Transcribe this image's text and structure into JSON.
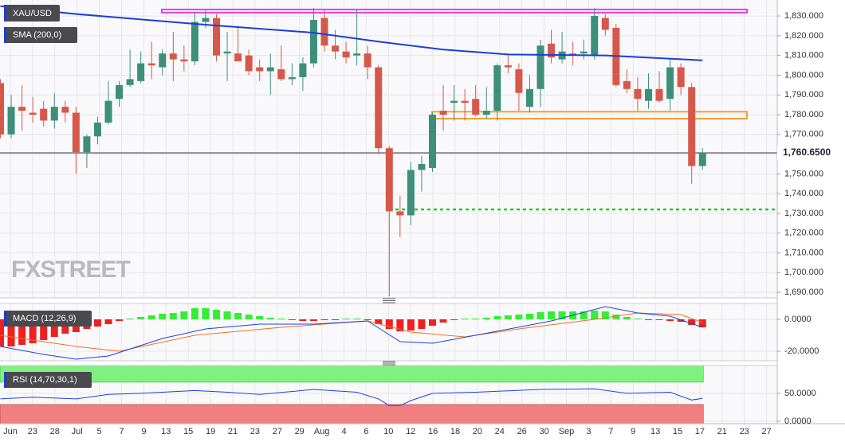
{
  "chart_data": {
    "type": "candlestick",
    "title": "XAU/USD",
    "watermark": "FXSTREET",
    "grid": true,
    "x_labels": [
      "Jun",
      "23",
      "28",
      "Jul",
      "5",
      "7",
      "9",
      "13",
      "15",
      "19",
      "21",
      "23",
      "27",
      "29",
      "Aug",
      "4",
      "6",
      "10",
      "12",
      "16",
      "18",
      "20",
      "24",
      "26",
      "30",
      "Sep",
      "3",
      "7",
      "9",
      "13",
      "15",
      "17",
      "21",
      "23",
      "27"
    ],
    "open": [
      1796,
      1770,
      1784,
      1781,
      1783,
      1777,
      1784,
      1781,
      1761,
      1769,
      1776,
      1788,
      1795,
      1797,
      1806,
      1804,
      1811,
      1808,
      1807,
      1827,
      1829,
      1811,
      1811,
      1810,
      1804,
      1802,
      1803,
      1798,
      1799,
      1806,
      1829,
      1815,
      1812,
      1810,
      1811,
      1804,
      1763,
      1731,
      1729,
      1752,
      1753,
      1782,
      1786,
      1787,
      1788,
      1780,
      1782,
      1805,
      1803,
      1784,
      1793,
      1816,
      1808,
      1811,
      1811,
      1810,
      1829,
      1824,
      1797,
      1793,
      1787,
      1793,
      1788,
      1804,
      1794,
      1754
    ],
    "high": [
      1798,
      1790,
      1795,
      1789,
      1787,
      1791,
      1787,
      1784,
      1770,
      1779,
      1797,
      1797,
      1813,
      1812,
      1817,
      1813,
      1822,
      1815,
      1832,
      1833,
      1831,
      1822,
      1825,
      1813,
      1808,
      1811,
      1815,
      1806,
      1809,
      1834,
      1833,
      1823,
      1817,
      1833,
      1815,
      1805,
      1764,
      1739,
      1756,
      1759,
      1781,
      1795,
      1795,
      1793,
      1795,
      1794,
      1806,
      1810,
      1806,
      1800,
      1818,
      1823,
      1822,
      1817,
      1818,
      1834,
      1831,
      1826,
      1803,
      1799,
      1801,
      1802,
      1808,
      1806,
      1796,
      1763
    ],
    "low": [
      1768,
      1768,
      1772,
      1776,
      1774,
      1773,
      1776,
      1750,
      1753,
      1765,
      1775,
      1784,
      1794,
      1796,
      1798,
      1800,
      1797,
      1802,
      1805,
      1824,
      1807,
      1797,
      1808,
      1800,
      1797,
      1790,
      1797,
      1795,
      1792,
      1804,
      1812,
      1808,
      1806,
      1805,
      1798,
      1760,
      1688,
      1718,
      1724,
      1741,
      1751,
      1772,
      1777,
      1777,
      1779,
      1778,
      1777,
      1801,
      1782,
      1781,
      1784,
      1806,
      1806,
      1805,
      1808,
      1808,
      1820,
      1794,
      1791,
      1782,
      1783,
      1786,
      1782,
      1790,
      1745,
      1752
    ],
    "close": [
      1770,
      1784,
      1782,
      1780,
      1777,
      1784,
      1781,
      1761,
      1769,
      1776,
      1787,
      1795,
      1798,
      1806,
      1805,
      1811,
      1808,
      1807,
      1827,
      1829,
      1810,
      1812,
      1807,
      1802,
      1802,
      1804,
      1798,
      1799,
      1806,
      1828,
      1815,
      1812,
      1809,
      1811,
      1804,
      1763,
      1731,
      1729,
      1752,
      1755,
      1780,
      1780,
      1787,
      1786,
      1780,
      1782,
      1805,
      1804,
      1791,
      1793,
      1815,
      1809,
      1812,
      1810,
      1812,
      1830,
      1823,
      1795,
      1793,
      1788,
      1793,
      1787,
      1804,
      1794,
      1754,
      1760.65
    ],
    "up_color": "#3d8f7a",
    "down_color": "#d6584b",
    "ylim": [
      1687.2,
      1838.1
    ],
    "yticks": [
      {
        "value": 1690,
        "label": "1,690.000"
      },
      {
        "value": 1700,
        "label": "1,700.000"
      },
      {
        "value": 1710,
        "label": "1,710.000"
      },
      {
        "value": 1720,
        "label": "1,720.000"
      },
      {
        "value": 1730,
        "label": "1,730.000"
      },
      {
        "value": 1740,
        "label": "1,740.000"
      },
      {
        "value": 1750,
        "label": "1,750.000"
      },
      {
        "value": 1760,
        "label": "1,760.000"
      },
      {
        "value": 1770,
        "label": "1,770.000"
      },
      {
        "value": 1780,
        "label": "1,780.000"
      },
      {
        "value": 1790,
        "label": "1,790.000"
      },
      {
        "value": 1800,
        "label": "1,800.000"
      },
      {
        "value": 1810,
        "label": "1,810.000"
      },
      {
        "value": 1820,
        "label": "1,820.000"
      },
      {
        "value": 1830,
        "label": "1,830.000"
      }
    ],
    "last_price": {
      "value": 1760.65,
      "label": "1,760.6500"
    },
    "zones": [
      {
        "top": 1833.3,
        "bottom": 1831.7,
        "color": "#e040e0"
      },
      {
        "top": 1781.5,
        "bottom": 1778,
        "color": "#f0a030"
      }
    ],
    "support": {
      "value": 1732,
      "color": "#22cc22"
    },
    "sma": {
      "name": "SMA (200,0)",
      "color": "#1a3fd6",
      "x": [
        0,
        7,
        18,
        29,
        35,
        41,
        47,
        56,
        65
      ],
      "values": [
        1835,
        1831,
        1826,
        1821.5,
        1817,
        1813,
        1810.5,
        1810,
        1807.5
      ]
    },
    "macd": {
      "name": "MACD (12,26,9)",
      "ylim": [
        -26,
        10
      ],
      "yticks": [
        {
          "value": 0,
          "label": "0.0000"
        },
        {
          "value": -20,
          "label": "-20.0000"
        }
      ],
      "histogram": [
        -17,
        -17,
        -16,
        -15,
        -13,
        -11,
        -9,
        -8,
        -6,
        -4.5,
        -3,
        -1,
        0.5,
        1.5,
        2.5,
        3.5,
        4,
        5,
        7,
        7,
        6,
        5,
        4,
        3,
        2,
        1,
        0.5,
        -0.5,
        -1,
        -1,
        -0.5,
        -0.5,
        0.5,
        0.5,
        -0.5,
        -3,
        -6,
        -7.5,
        -7,
        -6,
        -4,
        -2,
        -0.5,
        0.5,
        0.5,
        1,
        2,
        2.5,
        3,
        3.5,
        4.5,
        5,
        5,
        5,
        5,
        5.5,
        5,
        3,
        1.5,
        0.5,
        -0.5,
        -0.5,
        -1,
        -1.5,
        -3.5,
        -5
      ],
      "pos_color": "#33ee33",
      "neg_color": "#ee2020",
      "line": {
        "color": "#2040e0",
        "x": [
          0,
          4,
          7,
          10,
          15,
          19,
          24,
          29,
          34,
          37,
          40,
          44,
          51,
          56,
          59,
          62,
          65
        ],
        "values": [
          -17,
          -22,
          -25,
          -23,
          -12,
          -6,
          -3,
          -3,
          -1,
          -14,
          -15,
          -10,
          -1,
          8,
          4,
          2,
          -5
        ]
      },
      "signal": {
        "color": "#f07020",
        "x": [
          0,
          7,
          11,
          18,
          26,
          34,
          38,
          43,
          48,
          55,
          59,
          63,
          65
        ],
        "values": [
          -10,
          -17,
          -20,
          -10,
          -5,
          -1,
          -8,
          -11,
          -6,
          0,
          4,
          3,
          -2
        ]
      }
    },
    "rsi": {
      "name": "RSI (14,70,30,1)",
      "ylim": [
        -4.5,
        100
      ],
      "yticks": [
        {
          "value": 50,
          "label": "50.0000"
        },
        {
          "value": 0,
          "label": "0.0000"
        }
      ],
      "upper": 70,
      "lower": 30,
      "upper_color": "#80f080",
      "lower_color": "#f08080",
      "color": "#2040e0",
      "x": [
        0,
        3,
        7,
        10,
        13,
        18,
        21,
        24,
        29,
        33,
        35,
        36,
        37,
        38,
        40,
        44,
        50,
        55,
        58,
        62,
        64,
        65
      ],
      "values": [
        40,
        43,
        40,
        48,
        50,
        55,
        52,
        48,
        57,
        52,
        40,
        28,
        28,
        37,
        50,
        52,
        57,
        58,
        50,
        52,
        38,
        41
      ]
    }
  }
}
